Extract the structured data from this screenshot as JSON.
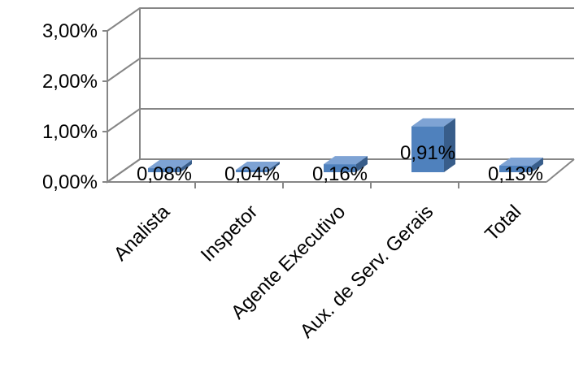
{
  "chart_data": {
    "type": "bar",
    "title": "",
    "xlabel": "",
    "ylabel": "",
    "categories": [
      "Analista",
      "Inspetor",
      "Agente Executivo",
      "Aux. de Serv. Gerais",
      "Total"
    ],
    "values": [
      0.08,
      0.04,
      0.16,
      0.91,
      0.13
    ],
    "data_labels": [
      "0,08%",
      "0,04%",
      "0,16%",
      "0,91%",
      "0,13%"
    ],
    "ylim": [
      0,
      3
    ],
    "yticks": [
      0,
      1,
      2,
      3
    ],
    "ytick_labels": [
      "0,00%",
      "1,00%",
      "2,00%",
      "3,00%"
    ],
    "grid": true,
    "legend": "none",
    "style": "3d",
    "bar_color": "#4F81BD"
  }
}
